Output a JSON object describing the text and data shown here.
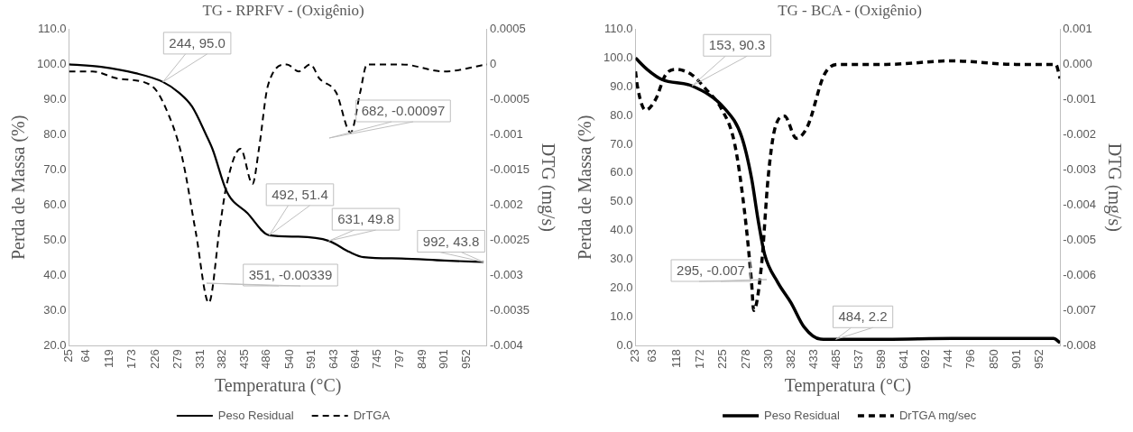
{
  "chart_data": [
    {
      "type": "line",
      "title": "TG - RPRFV - (Oxigênio)",
      "xlabel": "Temperatura (°C)",
      "ylabel": "Perda de Massa (%)",
      "y2label": "DTG (mg/s)",
      "xlim": [
        25,
        1000
      ],
      "xticks": [
        25,
        64,
        119,
        173,
        226,
        279,
        331,
        382,
        435,
        486,
        540,
        591,
        643,
        694,
        745,
        797,
        849,
        901,
        952
      ],
      "ylim": [
        20,
        110
      ],
      "yticks": [
        {
          "value": 110,
          "label": "110.0"
        },
        {
          "value": 100,
          "label": "100.0"
        },
        {
          "value": 90,
          "label": "90.0"
        },
        {
          "value": 80,
          "label": "80.0"
        },
        {
          "value": 70,
          "label": "70.0"
        },
        {
          "value": 60,
          "label": "60.0"
        },
        {
          "value": 50,
          "label": "50.0"
        },
        {
          "value": 40,
          "label": "40.0"
        },
        {
          "value": 30,
          "label": "30.0"
        },
        {
          "value": 20,
          "label": "20.0"
        }
      ],
      "y2lim": [
        -0.004,
        0.0005
      ],
      "y2ticks": [
        0.0005,
        0,
        -0.0005,
        -0.001,
        -0.0015,
        -0.002,
        -0.0025,
        -0.003,
        -0.0035,
        -0.004
      ],
      "grid": false,
      "legend": "bottom",
      "marker": "none",
      "series": [
        {
          "name": "Peso Residual",
          "color": "#000000",
          "line_style": "solid",
          "x": [
            25,
            100,
            180,
            244,
            281,
            312,
            345,
            360,
            393,
            441,
            492,
            560,
            631,
            680,
            712,
            800,
            900,
            992
          ],
          "values": [
            100,
            99.3,
            97.5,
            95,
            92,
            88,
            79.9,
            75.8,
            63.8,
            57.7,
            51.4,
            51,
            49.8,
            46.6,
            45.2,
            44.8,
            44.2,
            43.8
          ]
        },
        {
          "name": "DrTGA",
          "color": "#000000",
          "line_style": "dashed",
          "axis": "y2",
          "x": [
            25,
            80,
            138,
            217,
            249,
            288,
            321,
            351,
            377,
            393,
            425,
            453,
            468,
            489,
            533,
            561,
            588,
            609,
            648,
            682,
            704,
            720,
            800,
            900,
            1000
          ],
          "values": [
            -0.0001,
            -0.0001,
            -0.0002,
            -0.0003,
            -0.0006,
            -0.0013,
            -0.0024,
            -0.00339,
            -0.0023,
            -0.0017,
            -0.0012,
            -0.0017,
            -0.0012,
            -0.0003,
            0,
            -0.0001,
            0,
            -0.0002,
            -0.0004,
            -0.00097,
            -0.0004,
            0,
            0,
            -0.0001,
            0
          ]
        }
      ],
      "annotations": [
        {
          "text": "244, 95.0",
          "x": 244,
          "y": 95
        },
        "351, -0.00339",
        {
          "text": "492, 51.4",
          "x": 492,
          "y": 51.4
        },
        {
          "text": "631, 49.8",
          "x": 631,
          "y": 49.8
        },
        "682, -0.00097",
        {
          "text": "992, 43.8",
          "x": 992,
          "y": 43.8
        }
      ]
    },
    {
      "type": "line",
      "title": "TG - BCA - (Oxigênio)",
      "xlabel": "Temperatura (°C)",
      "ylabel": "Perda de Massa (%)",
      "y2label": "DTG (mg/s)",
      "xlim": [
        23,
        1000
      ],
      "xticks": [
        23,
        63,
        118,
        172,
        225,
        278,
        330,
        382,
        433,
        485,
        537,
        589,
        641,
        692,
        744,
        796,
        850,
        901,
        952
      ],
      "ylim": [
        0,
        110
      ],
      "yticks": [
        {
          "value": 110,
          "label": "110.0"
        },
        {
          "value": 100,
          "label": "100.0"
        },
        {
          "value": 90,
          "label": "90.0"
        },
        {
          "value": 80,
          "label": "80.0"
        },
        {
          "value": 70,
          "label": "70.0"
        },
        {
          "value": 60,
          "label": "60.0"
        },
        {
          "value": 50,
          "label": "50.0"
        },
        {
          "value": 40,
          "label": "40.0"
        },
        {
          "value": 30,
          "label": "30.0"
        },
        {
          "value": 20,
          "label": "20.0"
        },
        {
          "value": 10,
          "label": "10.0"
        },
        {
          "value": 0,
          "label": "0.0"
        }
      ],
      "y2lim": [
        -0.008,
        0.001
      ],
      "y2ticks": [
        0.001,
        {
          "value": 0,
          "label": "0.000"
        },
        -0.001,
        -0.002,
        -0.003,
        -0.004,
        -0.005,
        -0.006,
        -0.007,
        -0.008
      ],
      "grid": false,
      "legend": "bottom",
      "marker": "none",
      "series": [
        {
          "name": "Peso Residual",
          "color": "#000000",
          "line_style": "solid",
          "x": [
            23,
            50,
            84,
            153,
            229,
            267,
            290,
            305,
            320,
            350,
            381,
            411,
            449,
            484,
            600,
            750,
            900,
            985,
            1000
          ],
          "values": [
            100,
            96,
            92.5,
            90.3,
            82.3,
            72.7,
            58.2,
            43.8,
            31.8,
            22.1,
            14.9,
            6.5,
            2.3,
            2.2,
            2.2,
            2.5,
            2.5,
            2.5,
            1
          ]
        },
        {
          "name": "DrTGA mg/sec",
          "color": "#000000",
          "line_style": "dashed",
          "axis": "y2",
          "x": [
            23,
            27,
            46,
            69,
            92,
            115,
            153,
            183,
            221,
            251,
            274,
            290,
            295,
            313,
            328,
            343,
            366,
            393,
            419,
            457,
            488,
            600,
            750,
            900,
            990,
            1000
          ],
          "values": [
            -0.0002,
            -0.0006,
            -0.0013,
            -0.001,
            -0.0003,
            -0.00014,
            -0.0003,
            -0.00068,
            -0.00127,
            -0.00225,
            -0.0042,
            -0.0062,
            -0.007,
            -0.0057,
            -0.00324,
            -0.00186,
            -0.00147,
            -0.0021,
            -0.00176,
            -0.0003,
            0,
            0,
            0.0001,
            0,
            0,
            -0.0004
          ]
        }
      ],
      "annotations": [
        {
          "text": "153, 90.3",
          "x": 153,
          "y": 90.3
        },
        "295, -0.007",
        {
          "text": "484, 2.2",
          "x": 484,
          "y": 2.2
        }
      ]
    }
  ]
}
